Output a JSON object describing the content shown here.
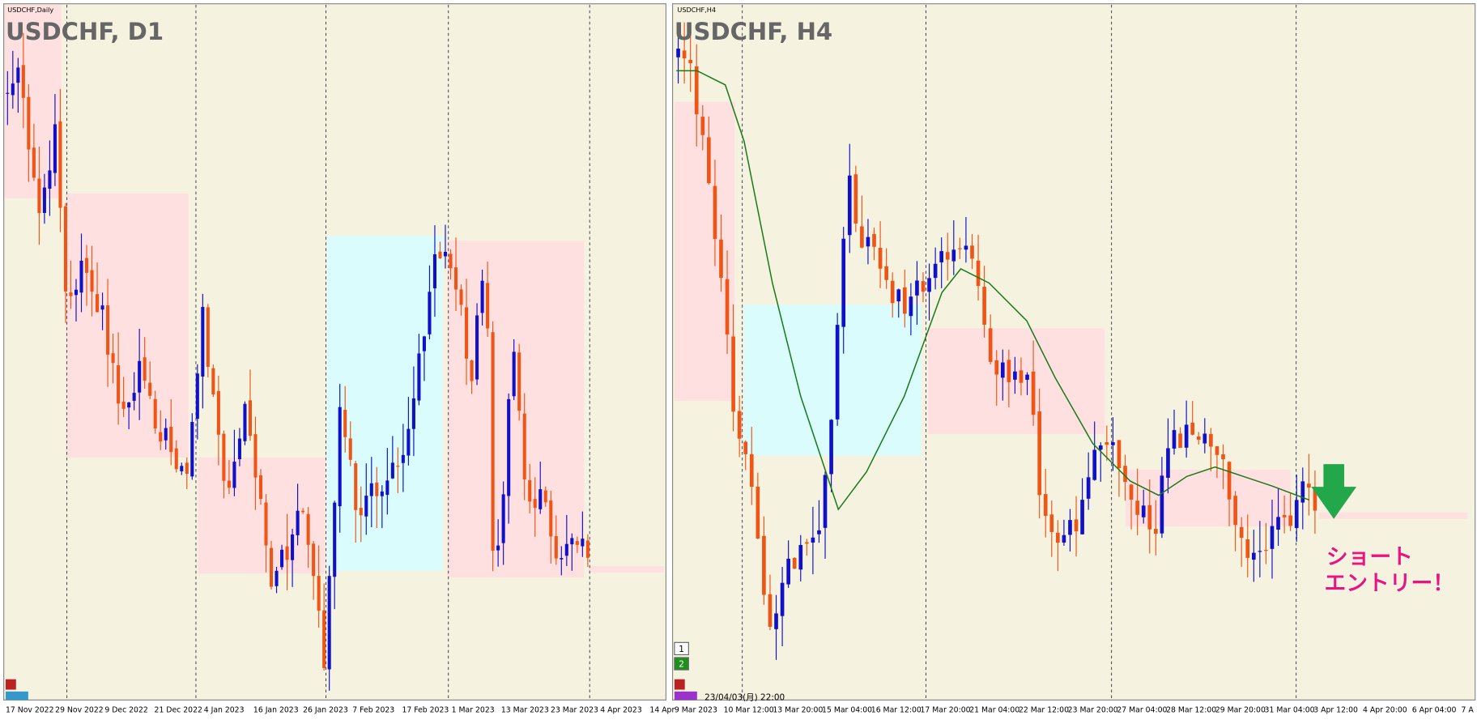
{
  "panels": [
    {
      "symbol_label": "USDCHF,Daily",
      "title": "USDCHF, D1",
      "x_labels": [
        "17 Nov 2022",
        "29 Nov 2022",
        "9 Dec 2022",
        "21 Dec 2022",
        "4 Jan 2023",
        "16 Jan 2023",
        "26 Jan 2023",
        "7 Feb 2023",
        "17 Feb 2023",
        "1 Mar 2023",
        "13 Mar 2023",
        "23 Mar 2023",
        "4 Apr 2023",
        "14 Apr"
      ]
    },
    {
      "symbol_label": "USDCHF,H4",
      "title": "USDCHF, H4",
      "x_labels": [
        "9 Mar 2023",
        "10 Mar 12:00",
        "13 Mar 20:00",
        "15 Mar 04:00",
        "16 Mar 12:00",
        "17 Mar 20:00",
        "21 Mar 04:00",
        "22 Mar 12:00",
        "23 Mar 20:00",
        "27 Mar 04:00",
        "28 Mar 12:00",
        "29 Mar 20:00",
        "31 Mar 04:00",
        "3 Apr 12:00",
        "4 Apr 20:00",
        "6 Apr 04:00",
        "7 A"
      ],
      "timestamp": "23/04/03(月) 22:00",
      "buttons": [
        "1",
        "2"
      ]
    }
  ],
  "annotation": [
    "ショート",
    "エントリー！"
  ]
}
